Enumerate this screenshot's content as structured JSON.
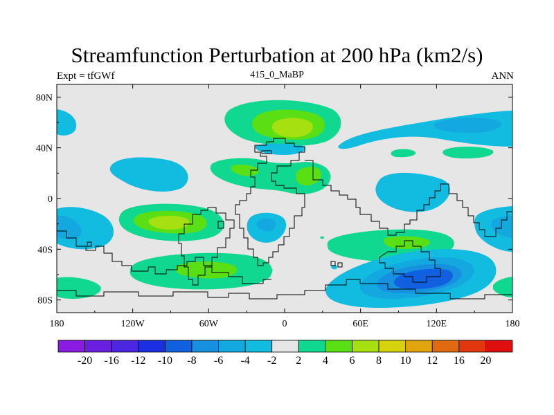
{
  "chart_data": {
    "type": "filled-contour-map",
    "title": "Streamfunction Perturbation at 200 hPa (km2/s)",
    "left_string": "Expt = tfGWf",
    "center_string": "415_0_MaBP",
    "right_string": "ANN",
    "x_ticks": [
      {
        "lon": -180,
        "label": "180"
      },
      {
        "lon": -120,
        "label": "120W"
      },
      {
        "lon": -60,
        "label": "60W"
      },
      {
        "lon": 0,
        "label": "0"
      },
      {
        "lon": 60,
        "label": "60E"
      },
      {
        "lon": 120,
        "label": "120E"
      },
      {
        "lon": 180,
        "label": "180"
      }
    ],
    "y_ticks": [
      {
        "lat": 80,
        "label": "80N"
      },
      {
        "lat": 40,
        "label": "40N"
      },
      {
        "lat": 0,
        "label": "0"
      },
      {
        "lat": -40,
        "label": "40S"
      },
      {
        "lat": -80,
        "label": "80S"
      }
    ],
    "xlim": [
      -180,
      180
    ],
    "ylim": [
      -90,
      90
    ],
    "colorbar": {
      "levels": [
        "-20",
        "-16",
        "-12",
        "-10",
        "-8",
        "-6",
        "-4",
        "-2",
        "2",
        "4",
        "6",
        "8",
        "10",
        "12",
        "16",
        "20"
      ],
      "colors": [
        "#8a1be0",
        "#6a1fe0",
        "#4b27e0",
        "#1a2fe0",
        "#1060e0",
        "#1790e0",
        "#14a8e0",
        "#12bce0",
        "#e6e6e6",
        "#10d890",
        "#5ade14",
        "#a6e010",
        "#d7d20e",
        "#e0a50f",
        "#e06a0f",
        "#e0370f",
        "#e00f0f"
      ]
    },
    "features": [
      {
        "lon": -170,
        "lat": 60,
        "level": -4
      },
      {
        "lon": -110,
        "lat": 20,
        "level": -4
      },
      {
        "lon": -165,
        "lat": -25,
        "level": -6
      },
      {
        "lon": -172,
        "lat": -40,
        "level": -8
      },
      {
        "lon": -92,
        "lat": -18,
        "level": 6
      },
      {
        "lon": -65,
        "lat": -55,
        "level": 4
      },
      {
        "lon": -165,
        "lat": -70,
        "level": 4
      },
      {
        "lon": 5,
        "lat": 55,
        "level": 8
      },
      {
        "lon": 5,
        "lat": 35,
        "level": -4
      },
      {
        "lon": 10,
        "lat": 15,
        "level": 4
      },
      {
        "lon": -25,
        "lat": -25,
        "level": -6
      },
      {
        "lon": 75,
        "lat": 15,
        "level": -4
      },
      {
        "lon": 135,
        "lat": 55,
        "level": -6
      },
      {
        "lon": 100,
        "lat": -35,
        "level": 6
      },
      {
        "lon": 105,
        "lat": -62,
        "level": -10
      },
      {
        "lon": 170,
        "lat": -25,
        "level": -6
      },
      {
        "lon": 170,
        "lat": -70,
        "level": 4
      }
    ]
  }
}
